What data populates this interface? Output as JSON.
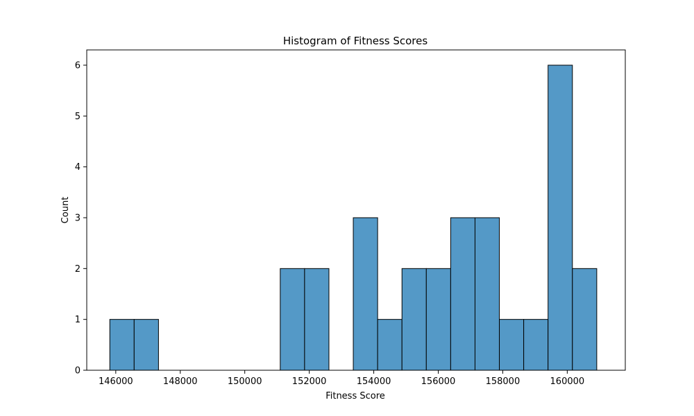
{
  "chart_data": {
    "type": "bar",
    "title": "Histogram of Fitness Scores",
    "xlabel": "Fitness Score",
    "ylabel": "Count",
    "xlim": [
      145100,
      161800
    ],
    "ylim": [
      0,
      6.3
    ],
    "x_ticks": [
      146000,
      148000,
      150000,
      152000,
      154000,
      156000,
      158000,
      160000
    ],
    "y_ticks": [
      0,
      1,
      2,
      3,
      4,
      5,
      6
    ],
    "bins": [
      {
        "start": 145815,
        "end": 146570,
        "count": 1
      },
      {
        "start": 146570,
        "end": 147325,
        "count": 1
      },
      {
        "start": 147325,
        "end": 148080,
        "count": 0
      },
      {
        "start": 148080,
        "end": 148835,
        "count": 0
      },
      {
        "start": 148835,
        "end": 149590,
        "count": 0
      },
      {
        "start": 149590,
        "end": 150345,
        "count": 0
      },
      {
        "start": 150345,
        "end": 151100,
        "count": 0
      },
      {
        "start": 151100,
        "end": 151855,
        "count": 2
      },
      {
        "start": 151855,
        "end": 152610,
        "count": 2
      },
      {
        "start": 152610,
        "end": 153365,
        "count": 0
      },
      {
        "start": 153365,
        "end": 154120,
        "count": 3
      },
      {
        "start": 154120,
        "end": 154875,
        "count": 1
      },
      {
        "start": 154875,
        "end": 155630,
        "count": 2
      },
      {
        "start": 155630,
        "end": 156385,
        "count": 2
      },
      {
        "start": 156385,
        "end": 157140,
        "count": 3
      },
      {
        "start": 157140,
        "end": 157895,
        "count": 3
      },
      {
        "start": 157895,
        "end": 158650,
        "count": 1
      },
      {
        "start": 158650,
        "end": 159405,
        "count": 1
      },
      {
        "start": 159405,
        "end": 160160,
        "count": 6
      },
      {
        "start": 160160,
        "end": 160915,
        "count": 2
      }
    ],
    "bar_color": "#5499c7",
    "edge_color": "#000000",
    "grid": false,
    "legend": "none"
  }
}
